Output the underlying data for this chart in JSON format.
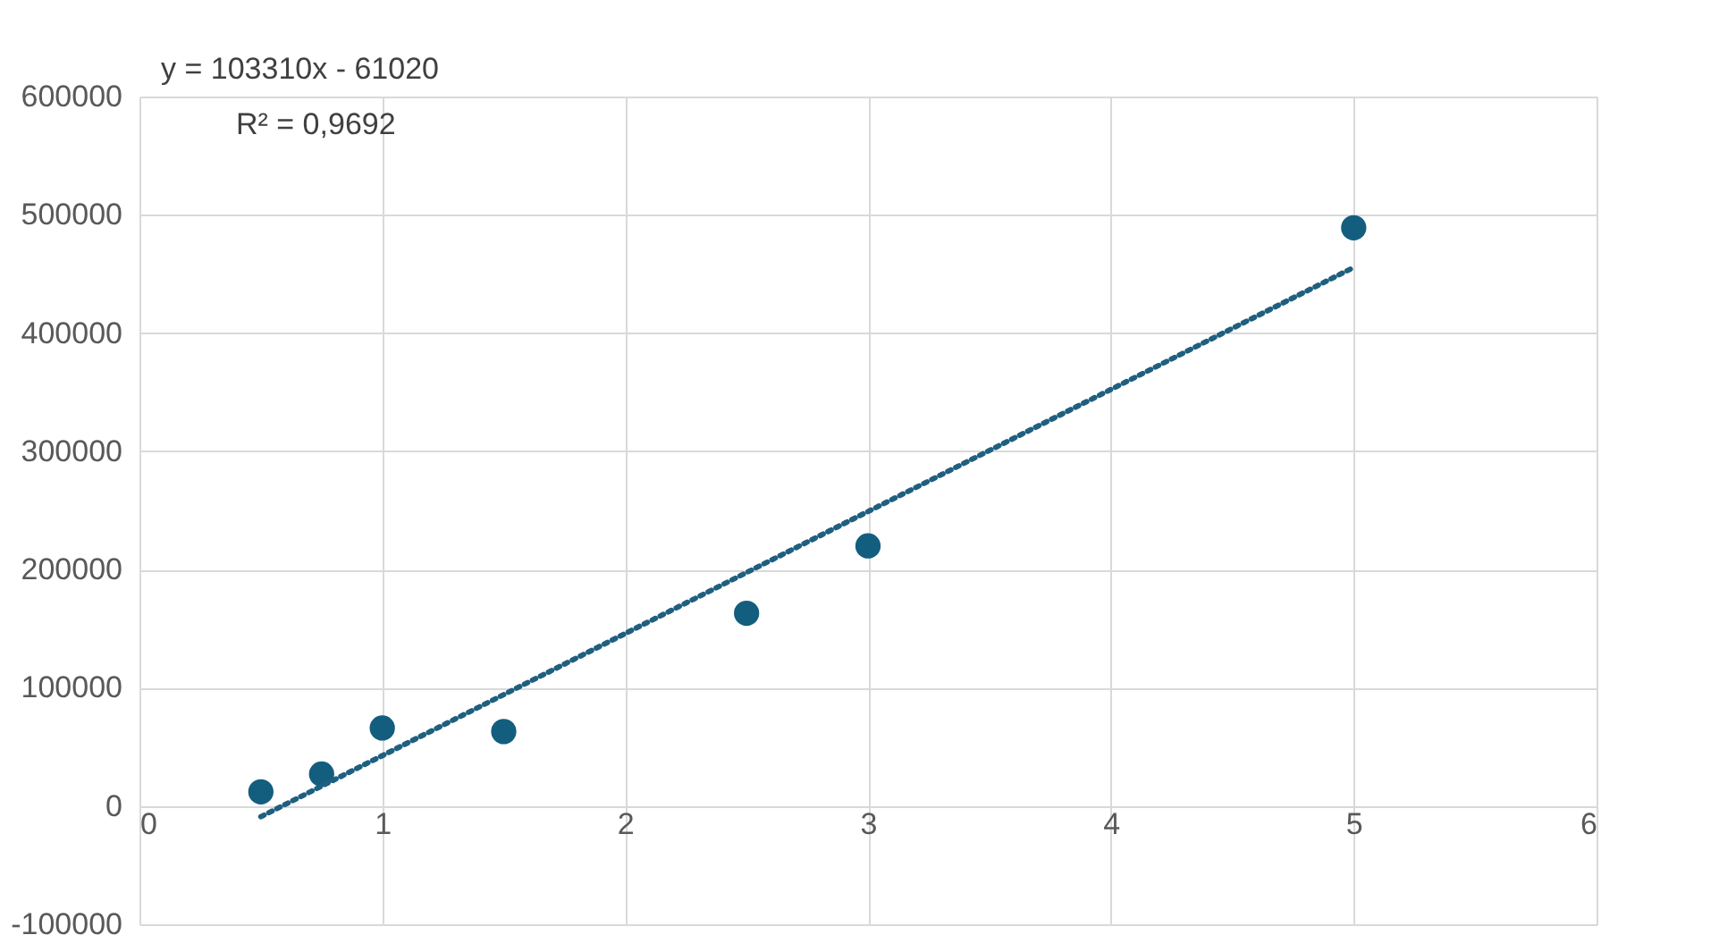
{
  "chart_data": {
    "type": "scatter",
    "annotations": [
      "y = 103310x - 61020",
      "R² = 0,9692"
    ],
    "series": [
      {
        "marker": "circle",
        "color": "#135e7f",
        "x": [
          0.5,
          0.75,
          1,
          1.5,
          2.5,
          3,
          5
        ],
        "values": [
          12000,
          27000,
          66000,
          63000,
          163000,
          220000,
          489000
        ]
      },
      {
        "type": "line",
        "line_style": "dotted",
        "color": "#1f5f7f",
        "x": [
          0.5,
          5
        ],
        "values": [
          -9000,
          455500
        ]
      }
    ],
    "xlim": [
      0,
      6
    ],
    "xticks": [
      0,
      1,
      2,
      3,
      4,
      5,
      6
    ],
    "ylim": [
      -100000,
      600000
    ],
    "yticks": [
      -100000,
      0,
      100000,
      200000,
      300000,
      400000,
      500000,
      600000
    ],
    "grid": true
  }
}
